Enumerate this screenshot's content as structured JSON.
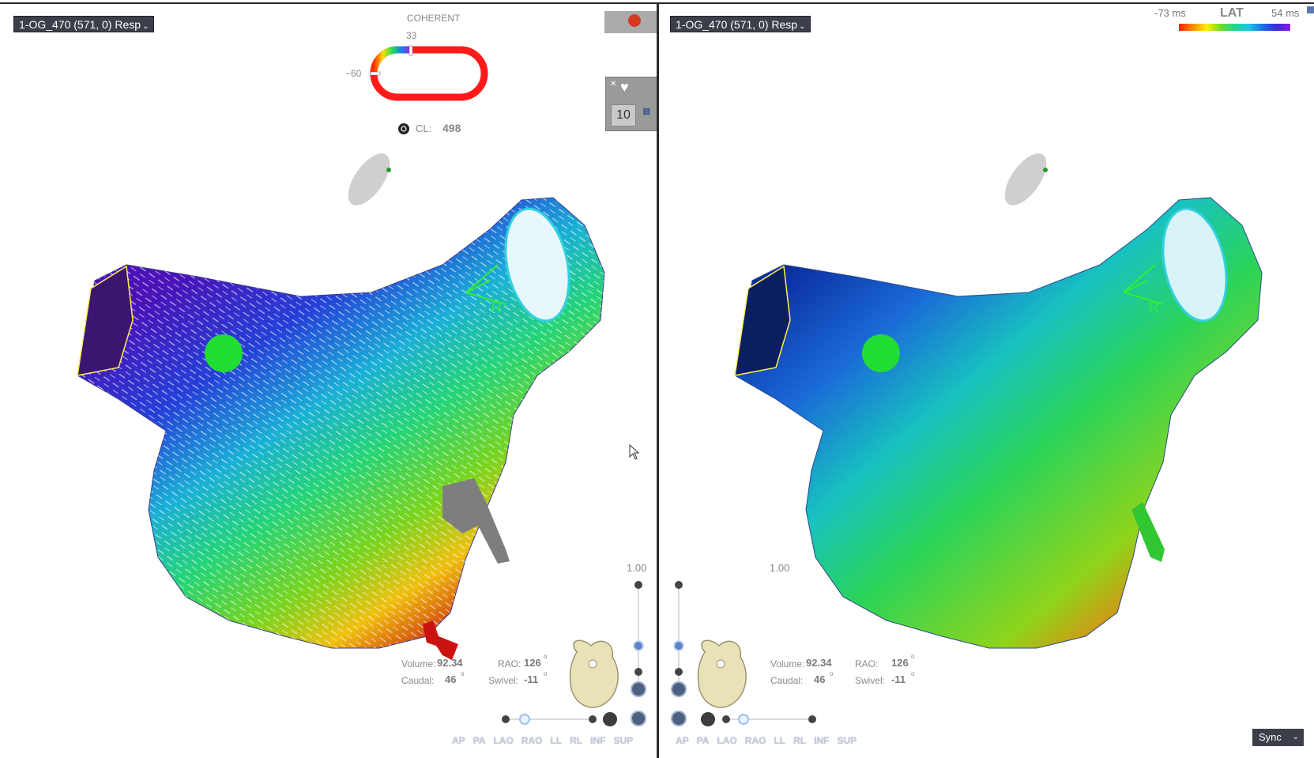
{
  "left_panel": {
    "map_selector": "1-OG_470 (571, 0) Resp",
    "coherent": {
      "title": "COHERENT",
      "top_value": "33",
      "side_value": "−60"
    },
    "cycle_length": {
      "label": "CL:",
      "value": "498"
    },
    "orientation": {
      "volume_label": "Volume:",
      "volume": "92.34",
      "rao_label": "RAO:",
      "rao": "126",
      "caudal_label": "Caudal:",
      "caudal": "46",
      "swivel_label": "Swivel:",
      "swivel": "-11",
      "degree": "o"
    },
    "zoom_value": "1.00",
    "tool_number": "10",
    "views": [
      "AP",
      "PA",
      "LAO",
      "RAO",
      "LL",
      "RL",
      "INF",
      "SUP"
    ]
  },
  "right_panel": {
    "map_selector": "1-OG_470 (571, 0) Resp",
    "lat_legend": {
      "min": "-73 ms",
      "title": "LAT",
      "max": "54 ms"
    },
    "orientation": {
      "volume_label": "Volume:",
      "volume": "92.34",
      "rao_label": "RAO:",
      "rao": "126",
      "caudal_label": "Caudal:",
      "caudal": "46",
      "swivel_label": "Swivel:",
      "swivel": "-11",
      "degree": "o"
    },
    "zoom_value": "1.00",
    "views": [
      "AP",
      "PA",
      "LAO",
      "RAO",
      "LL",
      "RL",
      "INF",
      "SUP"
    ],
    "sync_label": "Sync"
  },
  "colors": {
    "selector_bg": "#3b3f4a",
    "coherent_ring": "#ff1a1a",
    "ablation_tag": "#22dd33",
    "view_button_text": "#c7ccd8"
  }
}
